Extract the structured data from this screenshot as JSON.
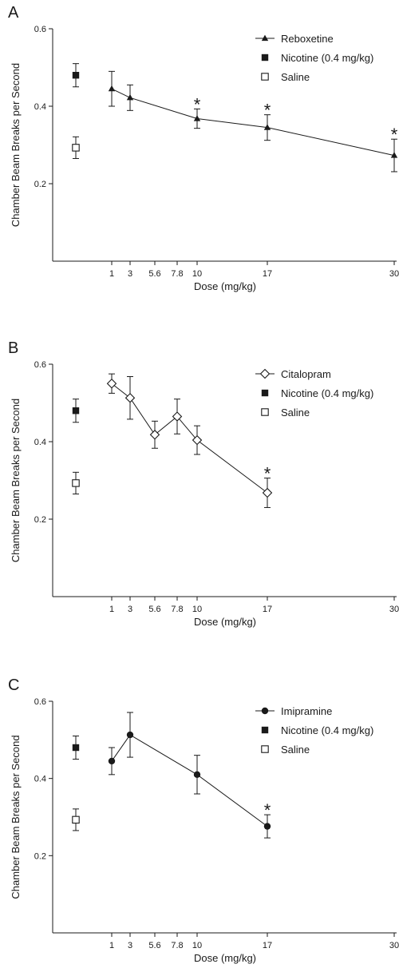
{
  "chart_data": [
    {
      "type": "scatter",
      "panel_label": "A",
      "xlabel": "Dose (mg/kg)",
      "ylabel": "Chamber Beam Breaks per Second",
      "x_tick_labels": [
        "1",
        "3",
        "5.6",
        "7.8",
        "10",
        "17",
        "30"
      ],
      "y_ticks": [
        "0.2",
        "0.4",
        "0.6"
      ],
      "ylim": [
        0,
        0.6
      ],
      "legend_position": "top-right",
      "series": [
        {
          "name": "Reboxetine",
          "marker": "triangle-filled",
          "connected": true,
          "x": [
            "1",
            "3",
            "10",
            "17",
            "30"
          ],
          "y": [
            0.445,
            0.422,
            0.368,
            0.345,
            0.273
          ],
          "err": [
            0.045,
            0.033,
            0.025,
            0.033,
            0.042
          ],
          "significant": [
            false,
            false,
            true,
            true,
            true
          ]
        },
        {
          "name": "Nicotine (0.4 mg/kg)",
          "marker": "square-filled",
          "connected": false,
          "y": 0.48,
          "err": 0.03
        },
        {
          "name": "Saline",
          "marker": "square-open",
          "connected": false,
          "y": 0.293,
          "err": 0.028
        }
      ],
      "significance_marker": "*"
    },
    {
      "type": "scatter",
      "panel_label": "B",
      "xlabel": "Dose (mg/kg)",
      "ylabel": "Chamber Beam Breaks per Second",
      "x_tick_labels": [
        "1",
        "3",
        "5.6",
        "7.8",
        "10",
        "17",
        "30"
      ],
      "y_ticks": [
        "0.2",
        "0.4",
        "0.6"
      ],
      "ylim": [
        0,
        0.6
      ],
      "legend_position": "top-right",
      "series": [
        {
          "name": "Citalopram",
          "marker": "diamond-open",
          "connected": true,
          "x": [
            "1",
            "3",
            "5.6",
            "7.8",
            "10",
            "17"
          ],
          "y": [
            0.55,
            0.513,
            0.418,
            0.465,
            0.404,
            0.268
          ],
          "err": [
            0.025,
            0.055,
            0.035,
            0.045,
            0.037,
            0.038
          ],
          "significant": [
            false,
            false,
            false,
            false,
            false,
            true
          ]
        },
        {
          "name": "Nicotine (0.4 mg/kg)",
          "marker": "square-filled",
          "connected": false,
          "y": 0.48,
          "err": 0.03
        },
        {
          "name": "Saline",
          "marker": "square-open",
          "connected": false,
          "y": 0.293,
          "err": 0.028
        }
      ],
      "significance_marker": "*"
    },
    {
      "type": "scatter",
      "panel_label": "C",
      "xlabel": "Dose (mg/kg)",
      "ylabel": "Chamber Beam Breaks per Second",
      "x_tick_labels": [
        "1",
        "3",
        "5.6",
        "7.8",
        "10",
        "17",
        "30"
      ],
      "y_ticks": [
        "0.2",
        "0.4",
        "0.6"
      ],
      "ylim": [
        0,
        0.6
      ],
      "legend_position": "top-right",
      "series": [
        {
          "name": "Imipramine",
          "marker": "circle-filled",
          "connected": true,
          "x": [
            "1",
            "3",
            "10",
            "17"
          ],
          "y": [
            0.445,
            0.513,
            0.41,
            0.276
          ],
          "err": [
            0.035,
            0.058,
            0.05,
            0.03
          ],
          "significant": [
            false,
            false,
            false,
            true
          ]
        },
        {
          "name": "Nicotine (0.4 mg/kg)",
          "marker": "square-filled",
          "connected": false,
          "y": 0.48,
          "err": 0.03
        },
        {
          "name": "Saline",
          "marker": "square-open",
          "connected": false,
          "y": 0.293,
          "err": 0.028
        }
      ],
      "significance_marker": "*"
    }
  ]
}
